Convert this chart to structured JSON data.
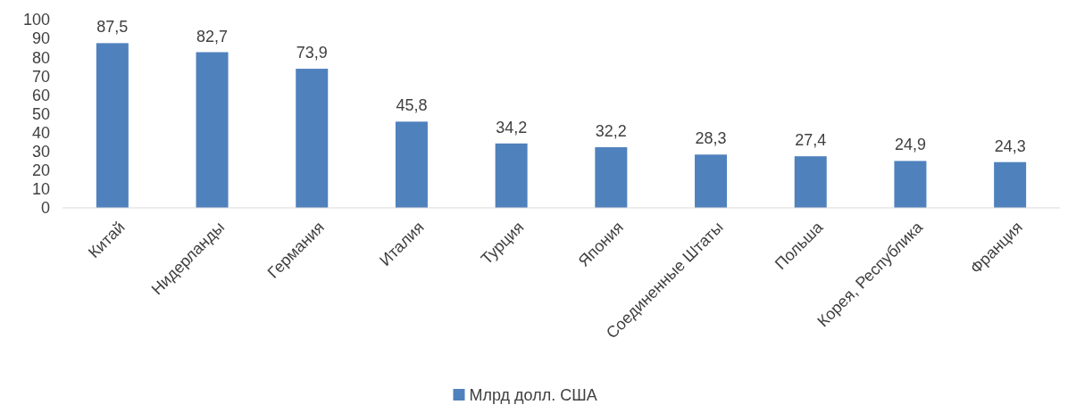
{
  "chart_data": {
    "type": "bar",
    "categories": [
      "Китай",
      "Нидерланды",
      "Германия",
      "Италия",
      "Турция",
      "Япония",
      "Соединенные Штаты",
      "Польша",
      "Корея, Республика",
      "Франция"
    ],
    "series": [
      {
        "name": "Млрд долл. США",
        "color": "#4f81bd",
        "values": [
          87.5,
          82.7,
          73.9,
          45.8,
          34.2,
          32.2,
          28.3,
          27.4,
          24.9,
          24.3
        ],
        "value_labels": [
          "87,5",
          "82,7",
          "73,9",
          "45,8",
          "34,2",
          "32,2",
          "28,3",
          "27,4",
          "24,9",
          "24,3"
        ]
      }
    ],
    "ylim": [
      0,
      100
    ],
    "yticks": [
      0,
      10,
      20,
      30,
      40,
      50,
      60,
      70,
      80,
      90,
      100
    ],
    "grid": false,
    "legend": "bottom"
  }
}
